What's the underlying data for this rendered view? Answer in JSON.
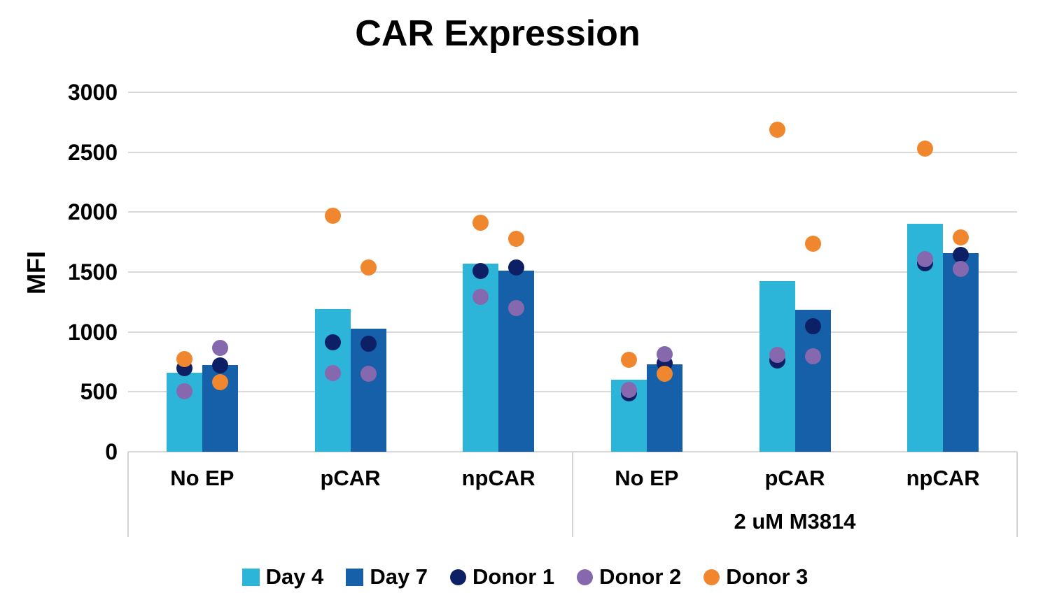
{
  "chart_data": {
    "type": "bar",
    "title": "CAR Expression",
    "ylabel": "MFI",
    "ylim": [
      0,
      3000
    ],
    "ytick_step": 500,
    "grid": "horizontal",
    "gridline_color": "#D9D9D9",
    "axis_line_color": "#D4D4D4",
    "legend_position": "bottom",
    "categories": [
      "No EP",
      "pCAR",
      "npCAR",
      "No EP",
      "pCAR",
      "npCAR"
    ],
    "group_axis": {
      "label": "2 uM M3814",
      "applies_to_categories": [
        3,
        4,
        5
      ]
    },
    "bar_columns": [
      "Day 4",
      "Day 7"
    ],
    "bar_series": [
      {
        "name": "Day 4",
        "color": "#2CB4D9",
        "marker": "square",
        "values": [
          660,
          1190,
          1570,
          600,
          1425,
          1900
        ]
      },
      {
        "name": "Day 7",
        "color": "#1560A8",
        "marker": "square",
        "values": [
          725,
          1025,
          1510,
          730,
          1185,
          1655
        ]
      }
    ],
    "scatter_series": [
      {
        "name": "Donor 1",
        "color": "#0E2065",
        "marker": "circle",
        "values": [
          [
            700,
            720
          ],
          [
            915,
            900
          ],
          [
            1510,
            1540
          ],
          [
            490,
            740
          ],
          [
            760,
            1045
          ],
          [
            1570,
            1645
          ]
        ]
      },
      {
        "name": "Donor 2",
        "color": "#8668AE",
        "marker": "circle",
        "values": [
          [
            505,
            865
          ],
          [
            655,
            650
          ],
          [
            1295,
            1200
          ],
          [
            515,
            815
          ],
          [
            810,
            795
          ],
          [
            1605,
            1525
          ]
        ]
      },
      {
        "name": "Donor 3",
        "color": "#F0862E",
        "marker": "circle",
        "values": [
          [
            775,
            580
          ],
          [
            1970,
            1540
          ],
          [
            1910,
            1775
          ],
          [
            770,
            650
          ],
          [
            2685,
            1735
          ],
          [
            2530,
            1790
          ]
        ]
      }
    ]
  }
}
